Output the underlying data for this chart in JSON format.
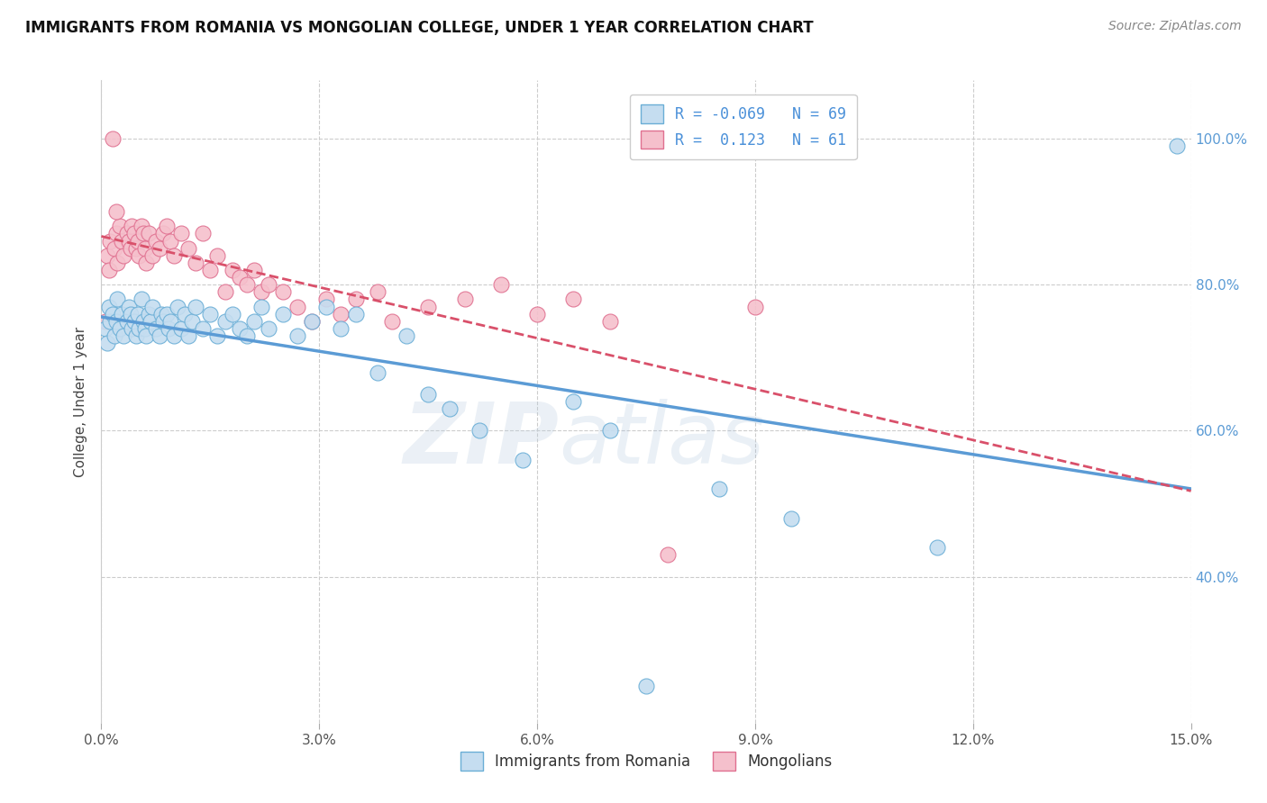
{
  "title": "IMMIGRANTS FROM ROMANIA VS MONGOLIAN COLLEGE, UNDER 1 YEAR CORRELATION CHART",
  "source": "Source: ZipAtlas.com",
  "ylabel": "College, Under 1 year",
  "legend_label1": "Immigrants from Romania",
  "legend_label2": "Mongolians",
  "R1_text": "R = -0.069",
  "N1_text": "N = 69",
  "R2_text": "R =  0.123",
  "N2_text": "N = 61",
  "color1_face": "#c5ddf0",
  "color1_edge": "#6aaed6",
  "color2_face": "#f5c0cc",
  "color2_edge": "#e07090",
  "line_color1": "#5b9bd5",
  "line_color2": "#d9506a",
  "xmin": 0.0,
  "xmax": 15.0,
  "ymin": 20.0,
  "ymax": 108.0,
  "xtick_vals": [
    0.0,
    3.0,
    6.0,
    9.0,
    12.0,
    15.0
  ],
  "ytick_vals": [
    40.0,
    60.0,
    80.0,
    100.0
  ],
  "watermark": "ZIPatlas",
  "blue_x": [
    0.05,
    0.08,
    0.1,
    0.12,
    0.15,
    0.18,
    0.2,
    0.22,
    0.25,
    0.28,
    0.3,
    0.35,
    0.38,
    0.4,
    0.42,
    0.45,
    0.48,
    0.5,
    0.52,
    0.55,
    0.58,
    0.6,
    0.62,
    0.65,
    0.68,
    0.7,
    0.75,
    0.8,
    0.82,
    0.85,
    0.9,
    0.92,
    0.95,
    1.0,
    1.05,
    1.1,
    1.15,
    1.2,
    1.25,
    1.3,
    1.4,
    1.5,
    1.6,
    1.7,
    1.8,
    1.9,
    2.0,
    2.1,
    2.2,
    2.3,
    2.5,
    2.7,
    2.9,
    3.1,
    3.3,
    3.5,
    3.8,
    4.2,
    4.5,
    4.8,
    5.2,
    5.8,
    6.5,
    7.0,
    7.5,
    8.5,
    9.5,
    11.5,
    14.8
  ],
  "blue_y": [
    74,
    72,
    77,
    75,
    76,
    73,
    75,
    78,
    74,
    76,
    73,
    75,
    77,
    76,
    74,
    75,
    73,
    76,
    74,
    78,
    75,
    74,
    73,
    76,
    75,
    77,
    74,
    73,
    76,
    75,
    76,
    74,
    75,
    73,
    77,
    74,
    76,
    73,
    75,
    77,
    74,
    76,
    73,
    75,
    76,
    74,
    73,
    75,
    77,
    74,
    76,
    73,
    75,
    77,
    74,
    76,
    68,
    73,
    65,
    63,
    60,
    56,
    64,
    60,
    25,
    52,
    48,
    44,
    99
  ],
  "pink_x": [
    0.05,
    0.08,
    0.1,
    0.12,
    0.15,
    0.18,
    0.2,
    0.22,
    0.25,
    0.28,
    0.3,
    0.35,
    0.38,
    0.4,
    0.42,
    0.45,
    0.48,
    0.5,
    0.52,
    0.55,
    0.58,
    0.6,
    0.62,
    0.65,
    0.7,
    0.75,
    0.8,
    0.85,
    0.9,
    0.95,
    1.0,
    1.1,
    1.2,
    1.3,
    1.4,
    1.5,
    1.6,
    1.7,
    1.8,
    1.9,
    2.0,
    2.1,
    2.2,
    2.3,
    2.5,
    2.7,
    2.9,
    3.1,
    3.3,
    3.5,
    3.8,
    4.0,
    4.5,
    5.0,
    5.5,
    6.0,
    6.5,
    7.0,
    7.8,
    9.0,
    0.2
  ],
  "pink_y": [
    75,
    84,
    82,
    86,
    100,
    85,
    87,
    83,
    88,
    86,
    84,
    87,
    86,
    85,
    88,
    87,
    85,
    86,
    84,
    88,
    87,
    85,
    83,
    87,
    84,
    86,
    85,
    87,
    88,
    86,
    84,
    87,
    85,
    83,
    87,
    82,
    84,
    79,
    82,
    81,
    80,
    82,
    79,
    80,
    79,
    77,
    75,
    78,
    76,
    78,
    79,
    75,
    77,
    78,
    80,
    76,
    78,
    75,
    43,
    77,
    90
  ]
}
